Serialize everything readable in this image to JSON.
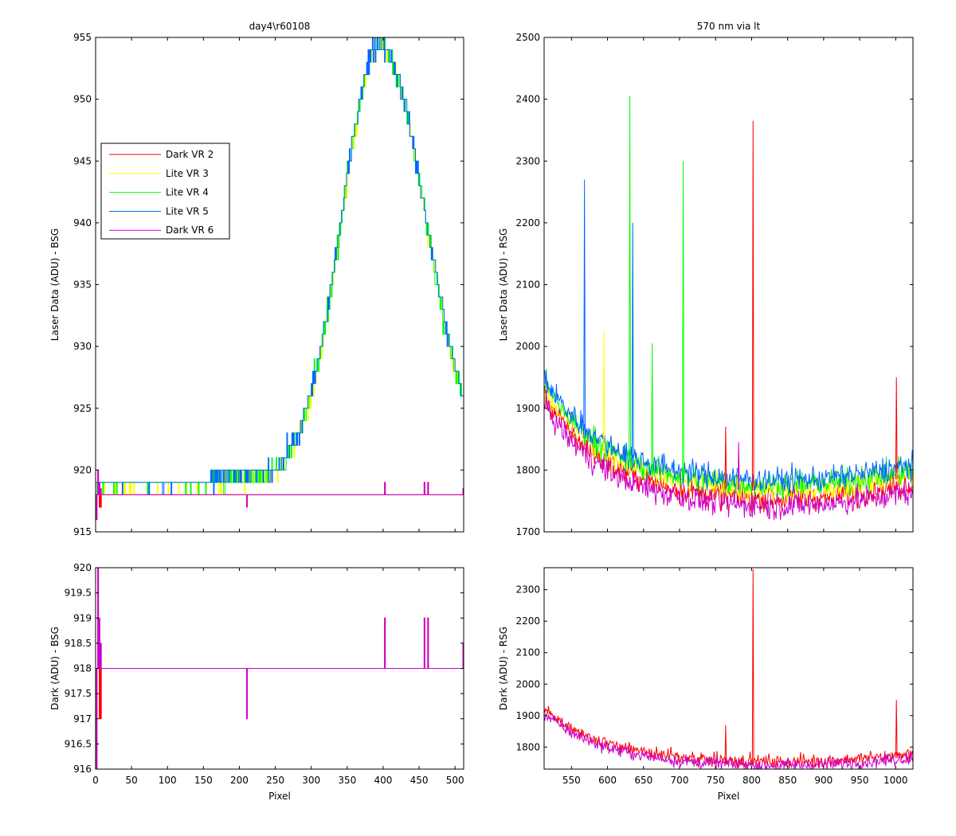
{
  "chart_data": [
    {
      "id": "top-left",
      "type": "line",
      "title": "day4\\r60108",
      "xlabel": "",
      "ylabel": "Laser Data (ADU) - BSG",
      "xlim": [
        0,
        512
      ],
      "ylim": [
        915,
        955
      ],
      "xticks": [
        0,
        50,
        100,
        150,
        200,
        250,
        300,
        350,
        400,
        450,
        500
      ],
      "xtick_labels": false,
      "yticks": [
        915,
        920,
        925,
        930,
        935,
        940,
        945,
        950,
        955
      ],
      "legend": "inside-left",
      "series": [
        {
          "name": "Dark VR 2",
          "color": "#ff0000",
          "kind": "dark_bsg"
        },
        {
          "name": "Lite VR 3",
          "color": "#ffff00",
          "kind": "lite_bsg"
        },
        {
          "name": "Lite VR 4",
          "color": "#00ff00",
          "kind": "lite_bsg"
        },
        {
          "name": "Lite VR 5",
          "color": "#0066ff",
          "kind": "lite_bsg"
        },
        {
          "name": "Dark VR 6",
          "color": "#cc00cc",
          "kind": "dark_bsg"
        }
      ]
    },
    {
      "id": "top-right",
      "type": "line",
      "title": "570 nm via lt",
      "xlabel": "",
      "ylabel": "Laser Data (ADU) - RSG",
      "xlim": [
        512,
        1024
      ],
      "ylim": [
        1700,
        2500
      ],
      "xticks": [
        550,
        600,
        650,
        700,
        750,
        800,
        850,
        900,
        950,
        1000
      ],
      "xtick_labels": false,
      "yticks": [
        1700,
        1800,
        1900,
        2000,
        2100,
        2200,
        2300,
        2400,
        2500
      ],
      "series": [
        {
          "color": "#ff0000",
          "kind": "dark_rsg"
        },
        {
          "color": "#ffff00",
          "kind": "lite_rsg"
        },
        {
          "color": "#00ff00",
          "kind": "lite_rsg"
        },
        {
          "color": "#0066ff",
          "kind": "lite_rsg"
        },
        {
          "color": "#cc00cc",
          "kind": "dark_rsg"
        }
      ],
      "spikes": [
        {
          "x": 568,
          "y": 2270,
          "color": "#0066ff"
        },
        {
          "x": 595,
          "y": 2025,
          "color": "#ffff00"
        },
        {
          "x": 631,
          "y": 2405,
          "color": "#00ff00"
        },
        {
          "x": 635,
          "y": 2200,
          "color": "#0066ff"
        },
        {
          "x": 662,
          "y": 2005,
          "color": "#00ff00"
        },
        {
          "x": 705,
          "y": 2300,
          "color": "#00ff00"
        },
        {
          "x": 764,
          "y": 1870,
          "color": "#ff0000"
        },
        {
          "x": 782,
          "y": 1845,
          "color": "#cc00cc"
        },
        {
          "x": 802,
          "y": 2365,
          "color": "#ff0000"
        },
        {
          "x": 1001,
          "y": 1950,
          "color": "#ff0000"
        }
      ]
    },
    {
      "id": "bottom-left",
      "type": "line",
      "title": "",
      "xlabel": "Pixel",
      "ylabel": "Dark (ADU) - BSG",
      "xlim": [
        0,
        512
      ],
      "ylim": [
        916,
        920
      ],
      "xticks": [
        0,
        50,
        100,
        150,
        200,
        250,
        300,
        350,
        400,
        450,
        500
      ],
      "xtick_labels": true,
      "yticks": [
        916,
        916.5,
        917,
        917.5,
        918,
        918.5,
        919,
        919.5,
        920
      ],
      "series": [
        {
          "color": "#ff0000",
          "kind": "dark_bsg"
        },
        {
          "color": "#cc00cc",
          "kind": "dark_bsg"
        }
      ]
    },
    {
      "id": "bottom-right",
      "type": "line",
      "title": "",
      "xlabel": "Pixel",
      "ylabel": "Dark (ADU) - RSG",
      "xlim": [
        512,
        1024
      ],
      "ylim": [
        1730,
        2370
      ],
      "xticks": [
        550,
        600,
        650,
        700,
        750,
        800,
        850,
        900,
        950,
        1000
      ],
      "xtick_labels": true,
      "yticks": [
        1800,
        1900,
        2000,
        2100,
        2200,
        2300
      ],
      "series": [
        {
          "color": "#ff0000",
          "kind": "dark_rsg"
        },
        {
          "color": "#cc00cc",
          "kind": "dark_rsg"
        }
      ],
      "spikes": [
        {
          "x": 764,
          "y": 1870,
          "color": "#ff0000"
        },
        {
          "x": 802,
          "y": 2365,
          "color": "#ff0000"
        },
        {
          "x": 1001,
          "y": 1950,
          "color": "#ff0000"
        }
      ]
    }
  ]
}
